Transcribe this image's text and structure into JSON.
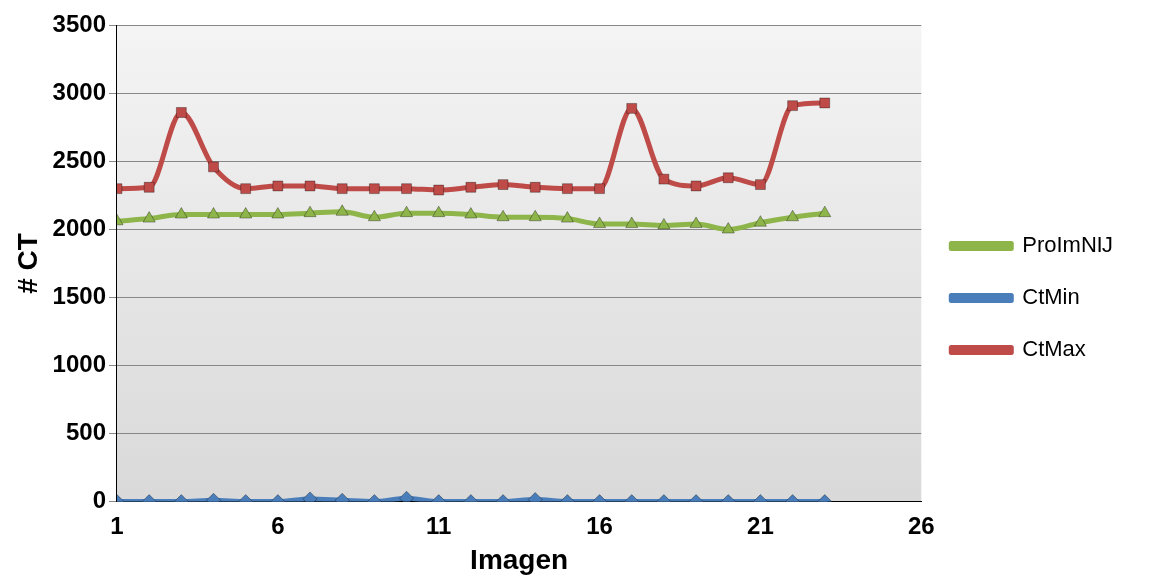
{
  "chart_data": {
    "type": "line",
    "xlabel": "Imagen",
    "ylabel": "# CT",
    "x": [
      1,
      2,
      3,
      4,
      5,
      6,
      7,
      8,
      9,
      10,
      11,
      12,
      13,
      14,
      15,
      16,
      17,
      18,
      19,
      20,
      21,
      22,
      23
    ],
    "series": [
      {
        "name": "ProImNĲ",
        "color": "#8db54a",
        "marker": "triangle",
        "values": [
          2060,
          2080,
          2110,
          2110,
          2110,
          2110,
          2120,
          2130,
          2090,
          2120,
          2120,
          2110,
          2090,
          2090,
          2080,
          2040,
          2040,
          2030,
          2040,
          2000,
          2050,
          2090,
          2120
        ]
      },
      {
        "name": "CtMin",
        "color": "#4a7ebb",
        "marker": "diamond",
        "values": [
          0,
          0,
          0,
          10,
          0,
          0,
          20,
          10,
          0,
          25,
          0,
          0,
          0,
          15,
          0,
          0,
          0,
          0,
          0,
          0,
          0,
          0,
          0
        ]
      },
      {
        "name": "CtMax",
        "color": "#be4b48",
        "marker": "square",
        "values": [
          2300,
          2310,
          2860,
          2460,
          2300,
          2320,
          2320,
          2300,
          2300,
          2300,
          2290,
          2310,
          2330,
          2310,
          2300,
          2300,
          2890,
          2370,
          2320,
          2380,
          2330,
          2910,
          2930
        ]
      }
    ],
    "xlim": [
      1,
      26
    ],
    "xticks": [
      1,
      6,
      11,
      16,
      21,
      26
    ],
    "ylim": [
      0,
      3500
    ],
    "yticks": [
      0,
      500,
      1000,
      1500,
      2000,
      2500,
      3000,
      3500
    ],
    "grid": "y",
    "legend": "right",
    "line_style": "solid"
  }
}
